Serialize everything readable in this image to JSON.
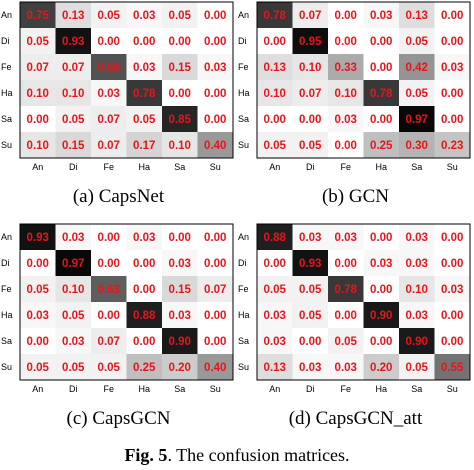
{
  "chart_data": [
    {
      "type": "heatmap",
      "caption": "(a) CapsNet",
      "x_labels": [
        "An",
        "Di",
        "Fe",
        "Ha",
        "Sa",
        "Su"
      ],
      "y_labels": [
        "An",
        "Di",
        "Fe",
        "Ha",
        "Sa",
        "Su"
      ],
      "values": [
        [
          "0.75",
          "0.13",
          "0.05",
          "0.03",
          "0.05",
          "0.00"
        ],
        [
          "0.05",
          "0.93",
          "0.00",
          "0.00",
          "0.00",
          "0.00"
        ],
        [
          "0.07",
          "0.07",
          "0.68",
          "0.03",
          "0.15",
          "0.03"
        ],
        [
          "0.10",
          "0.10",
          "0.03",
          "0.78",
          "0.00",
          "0.00"
        ],
        [
          "0.00",
          "0.05",
          "0.07",
          "0.05",
          "0.85",
          "0.00"
        ],
        [
          "0.10",
          "0.15",
          "0.07",
          "0.17",
          "0.10",
          "0.40"
        ]
      ]
    },
    {
      "type": "heatmap",
      "caption": "(b) GCN",
      "x_labels": [
        "An",
        "Di",
        "Fe",
        "Ha",
        "Sa",
        "Su"
      ],
      "y_labels": [
        "An",
        "Di",
        "Fe",
        "Ha",
        "Sa",
        "Su"
      ],
      "values": [
        [
          "0.78",
          "0.07",
          "0.00",
          "0.03",
          "0.13",
          "0.00"
        ],
        [
          "0.00",
          "0.95",
          "0.00",
          "0.00",
          "0.05",
          "0.00"
        ],
        [
          "0.13",
          "0.10",
          "0.33",
          "0.00",
          "0.42",
          "0.03"
        ],
        [
          "0.10",
          "0.07",
          "0.10",
          "0.78",
          "0.05",
          "0.00"
        ],
        [
          "0.00",
          "0.00",
          "0.03",
          "0.00",
          "0.97",
          "0.00"
        ],
        [
          "0.05",
          "0.05",
          "0.00",
          "0.25",
          "0.30",
          "0.23"
        ]
      ]
    },
    {
      "type": "heatmap",
      "caption": "(c) CapsGCN",
      "x_labels": [
        "An",
        "Di",
        "Fe",
        "Ha",
        "Sa",
        "Su"
      ],
      "y_labels": [
        "An",
        "Di",
        "Fe",
        "Ha",
        "Sa",
        "Su"
      ],
      "values": [
        [
          "0.93",
          "0.03",
          "0.00",
          "0.03",
          "0.00",
          "0.00"
        ],
        [
          "0.00",
          "0.97",
          "0.00",
          "0.00",
          "0.03",
          "0.00"
        ],
        [
          "0.05",
          "0.10",
          "0.63",
          "0.00",
          "0.15",
          "0.07"
        ],
        [
          "0.03",
          "0.05",
          "0.00",
          "0.88",
          "0.03",
          "0.00"
        ],
        [
          "0.00",
          "0.03",
          "0.07",
          "0.00",
          "0.90",
          "0.00"
        ],
        [
          "0.05",
          "0.05",
          "0.05",
          "0.25",
          "0.20",
          "0.40"
        ]
      ]
    },
    {
      "type": "heatmap",
      "caption": "(d) CapsGCN_att",
      "x_labels": [
        "An",
        "Di",
        "Fe",
        "Ha",
        "Sa",
        "Su"
      ],
      "y_labels": [
        "An",
        "Di",
        "Fe",
        "Ha",
        "Sa",
        "Su"
      ],
      "values": [
        [
          "0.88",
          "0.03",
          "0.03",
          "0.00",
          "0.03",
          "0.00"
        ],
        [
          "0.00",
          "0.93",
          "0.00",
          "0.03",
          "0.03",
          "0.00"
        ],
        [
          "0.05",
          "0.05",
          "0.78",
          "0.00",
          "0.10",
          "0.03"
        ],
        [
          "0.03",
          "0.05",
          "0.00",
          "0.90",
          "0.03",
          "0.00"
        ],
        [
          "0.03",
          "0.00",
          "0.05",
          "0.00",
          "0.90",
          "0.00"
        ],
        [
          "0.13",
          "0.03",
          "0.03",
          "0.20",
          "0.05",
          "0.55"
        ]
      ]
    }
  ],
  "figure_caption": {
    "label": "Fig. 5",
    "text": ". The confusion matrices."
  }
}
